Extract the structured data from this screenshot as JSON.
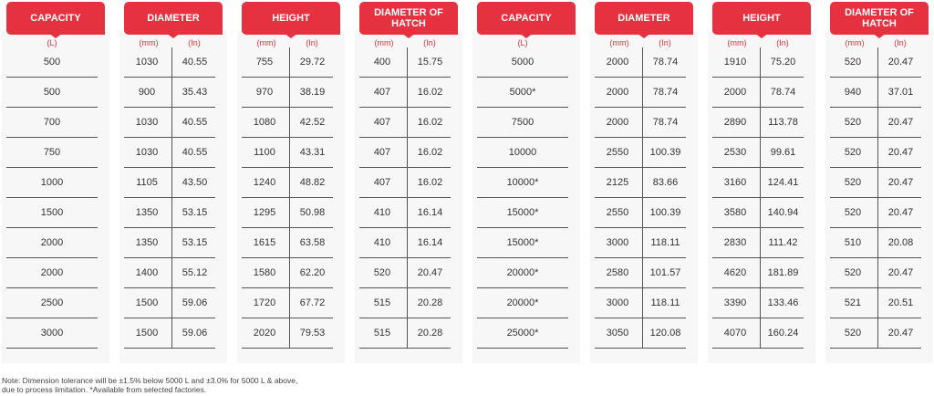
{
  "columns": [
    {
      "header": "CAPACITY",
      "units": [
        "(L)"
      ],
      "rows": [
        [
          "500"
        ],
        [
          "500"
        ],
        [
          "700"
        ],
        [
          "750"
        ],
        [
          "1000"
        ],
        [
          "1500"
        ],
        [
          "2000"
        ],
        [
          "2000"
        ],
        [
          "2500"
        ],
        [
          "3000"
        ]
      ]
    },
    {
      "header": "DIAMETER",
      "units": [
        "(mm)",
        "(In)"
      ],
      "rows": [
        [
          "1030",
          "40.55"
        ],
        [
          "900",
          "35.43"
        ],
        [
          "1030",
          "40.55"
        ],
        [
          "1030",
          "40.55"
        ],
        [
          "1105",
          "43.50"
        ],
        [
          "1350",
          "53.15"
        ],
        [
          "1350",
          "53.15"
        ],
        [
          "1400",
          "55.12"
        ],
        [
          "1500",
          "59.06"
        ],
        [
          "1500",
          "59.06"
        ]
      ]
    },
    {
      "header": "HEIGHT",
      "units": [
        "(mm)",
        "(In)"
      ],
      "rows": [
        [
          "755",
          "29.72"
        ],
        [
          "970",
          "38.19"
        ],
        [
          "1080",
          "42.52"
        ],
        [
          "1100",
          "43.31"
        ],
        [
          "1240",
          "48.82"
        ],
        [
          "1295",
          "50.98"
        ],
        [
          "1615",
          "63.58"
        ],
        [
          "1580",
          "62.20"
        ],
        [
          "1720",
          "67.72"
        ],
        [
          "2020",
          "79.53"
        ]
      ]
    },
    {
      "header": "DIAMETER OF HATCH",
      "units": [
        "(mm)",
        "(In)"
      ],
      "rows": [
        [
          "400",
          "15.75"
        ],
        [
          "407",
          "16.02"
        ],
        [
          "407",
          "16.02"
        ],
        [
          "407",
          "16.02"
        ],
        [
          "407",
          "16.02"
        ],
        [
          "410",
          "16.14"
        ],
        [
          "410",
          "16.14"
        ],
        [
          "520",
          "20.47"
        ],
        [
          "515",
          "20.28"
        ],
        [
          "515",
          "20.28"
        ]
      ]
    },
    {
      "header": "CAPACITY",
      "units": [
        "(L)"
      ],
      "rows": [
        [
          "5000"
        ],
        [
          "5000*"
        ],
        [
          "7500"
        ],
        [
          "10000"
        ],
        [
          "10000*"
        ],
        [
          "15000*"
        ],
        [
          "15000*"
        ],
        [
          "20000*"
        ],
        [
          "20000*"
        ],
        [
          "25000*"
        ]
      ]
    },
    {
      "header": "DIAMETER",
      "units": [
        "(mm)",
        "(In)"
      ],
      "rows": [
        [
          "2000",
          "78.74"
        ],
        [
          "2000",
          "78.74"
        ],
        [
          "2000",
          "78.74"
        ],
        [
          "2550",
          "100.39"
        ],
        [
          "2125",
          "83.66"
        ],
        [
          "2550",
          "100.39"
        ],
        [
          "3000",
          "118.11"
        ],
        [
          "2580",
          "101.57"
        ],
        [
          "3000",
          "118.11"
        ],
        [
          "3050",
          "120.08"
        ]
      ]
    },
    {
      "header": "HEIGHT",
      "units": [
        "(mm)",
        "(In)"
      ],
      "rows": [
        [
          "1910",
          "75.20"
        ],
        [
          "2000",
          "78.74"
        ],
        [
          "2890",
          "113.78"
        ],
        [
          "2530",
          "99.61"
        ],
        [
          "3160",
          "124.41"
        ],
        [
          "3580",
          "140.94"
        ],
        [
          "2830",
          "111.42"
        ],
        [
          "4620",
          "181.89"
        ],
        [
          "3390",
          "133.46"
        ],
        [
          "4070",
          "160.24"
        ]
      ]
    },
    {
      "header": "DIAMETER OF HATCH",
      "units": [
        "(mm)",
        "(In)"
      ],
      "rows": [
        [
          "520",
          "20.47"
        ],
        [
          "940",
          "37.01"
        ],
        [
          "520",
          "20.47"
        ],
        [
          "520",
          "20.47"
        ],
        [
          "520",
          "20.47"
        ],
        [
          "520",
          "20.47"
        ],
        [
          "510",
          "20.08"
        ],
        [
          "520",
          "20.47"
        ],
        [
          "521",
          "20.51"
        ],
        [
          "520",
          "20.47"
        ]
      ]
    }
  ],
  "note": {
    "line1": "Note: Dimension tolerance will be ±1.5% below 5000 L and ±3.0% for 5000 L & above,",
    "line2": "due to process limitation. *Available from selected factories."
  },
  "colors": {
    "accent": "#e63140",
    "panel": "#f7f7f7",
    "text": "#333333"
  }
}
